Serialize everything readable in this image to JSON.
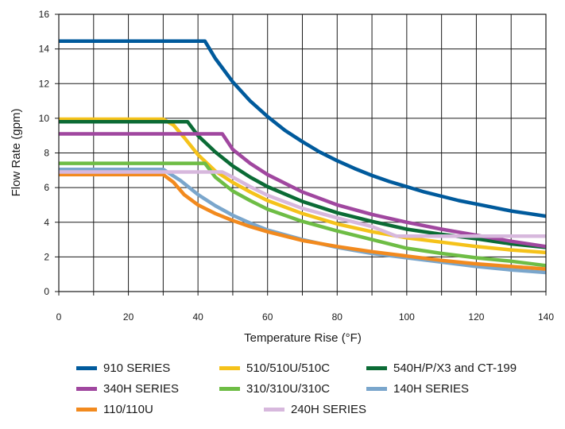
{
  "chart_data": {
    "type": "line",
    "title": "",
    "xlabel": "Temperature Rise (°F)",
    "ylabel": "Flow Rate (gpm)",
    "xlim": [
      0,
      140
    ],
    "ylim": [
      0,
      16
    ],
    "xticks": [
      0,
      20,
      40,
      60,
      80,
      100,
      120,
      140
    ],
    "yticks": [
      0,
      2,
      4,
      6,
      8,
      10,
      12,
      14,
      16
    ],
    "grid": true,
    "legend_position": "bottom",
    "series": [
      {
        "name": "910 SERIES",
        "color": "#005a9c",
        "points": [
          [
            0,
            14.45
          ],
          [
            42,
            14.45
          ],
          [
            45,
            13.45
          ],
          [
            50,
            12.1
          ],
          [
            55,
            11.0
          ],
          [
            60,
            10.1
          ],
          [
            65,
            9.3
          ],
          [
            70,
            8.65
          ],
          [
            75,
            8.05
          ],
          [
            80,
            7.55
          ],
          [
            85,
            7.1
          ],
          [
            90,
            6.7
          ],
          [
            95,
            6.35
          ],
          [
            100,
            6.05
          ],
          [
            105,
            5.75
          ],
          [
            110,
            5.5
          ],
          [
            115,
            5.25
          ],
          [
            120,
            5.05
          ],
          [
            125,
            4.85
          ],
          [
            130,
            4.65
          ],
          [
            135,
            4.5
          ],
          [
            140,
            4.35
          ]
        ]
      },
      {
        "name": "510/510U/510C",
        "color": "#f5c21a",
        "points": [
          [
            0,
            9.95
          ],
          [
            30,
            9.95
          ],
          [
            33,
            9.6
          ],
          [
            36,
            8.9
          ],
          [
            40,
            7.9
          ],
          [
            45,
            6.95
          ],
          [
            50,
            6.3
          ],
          [
            55,
            5.75
          ],
          [
            60,
            5.25
          ],
          [
            70,
            4.5
          ],
          [
            80,
            3.9
          ],
          [
            90,
            3.45
          ],
          [
            100,
            3.1
          ],
          [
            110,
            2.85
          ],
          [
            120,
            2.6
          ],
          [
            130,
            2.4
          ],
          [
            140,
            2.25
          ]
        ]
      },
      {
        "name": "540H/P/X3 and CT-199",
        "color": "#0b6b35",
        "points": [
          [
            0,
            9.8
          ],
          [
            37,
            9.8
          ],
          [
            40,
            9.0
          ],
          [
            45,
            8.05
          ],
          [
            50,
            7.25
          ],
          [
            55,
            6.6
          ],
          [
            60,
            6.05
          ],
          [
            70,
            5.2
          ],
          [
            80,
            4.55
          ],
          [
            90,
            4.05
          ],
          [
            100,
            3.6
          ],
          [
            110,
            3.3
          ],
          [
            120,
            3.05
          ],
          [
            130,
            2.75
          ],
          [
            140,
            2.55
          ]
        ]
      },
      {
        "name": "340H SERIES",
        "color": "#a0479f",
        "points": [
          [
            0,
            9.1
          ],
          [
            47,
            9.1
          ],
          [
            50,
            8.2
          ],
          [
            55,
            7.4
          ],
          [
            60,
            6.75
          ],
          [
            70,
            5.75
          ],
          [
            80,
            5.0
          ],
          [
            90,
            4.45
          ],
          [
            100,
            4.0
          ],
          [
            110,
            3.6
          ],
          [
            120,
            3.25
          ],
          [
            130,
            2.9
          ],
          [
            140,
            2.6
          ]
        ]
      },
      {
        "name": "310/310U/310C",
        "color": "#6ebd45",
        "points": [
          [
            0,
            7.4
          ],
          [
            42,
            7.4
          ],
          [
            45,
            6.6
          ],
          [
            50,
            5.8
          ],
          [
            55,
            5.25
          ],
          [
            60,
            4.75
          ],
          [
            70,
            4.05
          ],
          [
            80,
            3.5
          ],
          [
            90,
            3.0
          ],
          [
            100,
            2.5
          ],
          [
            110,
            2.2
          ],
          [
            120,
            1.95
          ],
          [
            130,
            1.75
          ],
          [
            140,
            1.5
          ]
        ]
      },
      {
        "name": "140H SERIES",
        "color": "#7aa6cc",
        "points": [
          [
            0,
            7.05
          ],
          [
            30,
            7.05
          ],
          [
            35,
            6.4
          ],
          [
            40,
            5.6
          ],
          [
            45,
            4.95
          ],
          [
            50,
            4.4
          ],
          [
            55,
            3.95
          ],
          [
            60,
            3.55
          ],
          [
            70,
            3.0
          ],
          [
            80,
            2.55
          ],
          [
            90,
            2.2
          ],
          [
            100,
            1.95
          ],
          [
            110,
            1.7
          ],
          [
            120,
            1.45
          ],
          [
            130,
            1.25
          ],
          [
            140,
            1.1
          ]
        ]
      },
      {
        "name": "110/110U",
        "color": "#f28a1e",
        "points": [
          [
            0,
            6.75
          ],
          [
            30,
            6.75
          ],
          [
            33,
            6.3
          ],
          [
            36,
            5.6
          ],
          [
            40,
            5.0
          ],
          [
            45,
            4.5
          ],
          [
            50,
            4.1
          ],
          [
            55,
            3.75
          ],
          [
            60,
            3.45
          ],
          [
            70,
            2.95
          ],
          [
            80,
            2.6
          ],
          [
            90,
            2.3
          ],
          [
            100,
            2.05
          ],
          [
            110,
            1.8
          ],
          [
            120,
            1.6
          ],
          [
            130,
            1.45
          ],
          [
            140,
            1.3
          ]
        ]
      },
      {
        "name": "240H SERIES",
        "color": "#d7b8dd",
        "points": [
          [
            0,
            6.9
          ],
          [
            47,
            6.9
          ],
          [
            50,
            6.6
          ],
          [
            55,
            6.05
          ],
          [
            60,
            5.55
          ],
          [
            70,
            4.8
          ],
          [
            80,
            4.25
          ],
          [
            90,
            3.75
          ],
          [
            97,
            3.2
          ],
          [
            140,
            3.2
          ]
        ]
      }
    ]
  }
}
